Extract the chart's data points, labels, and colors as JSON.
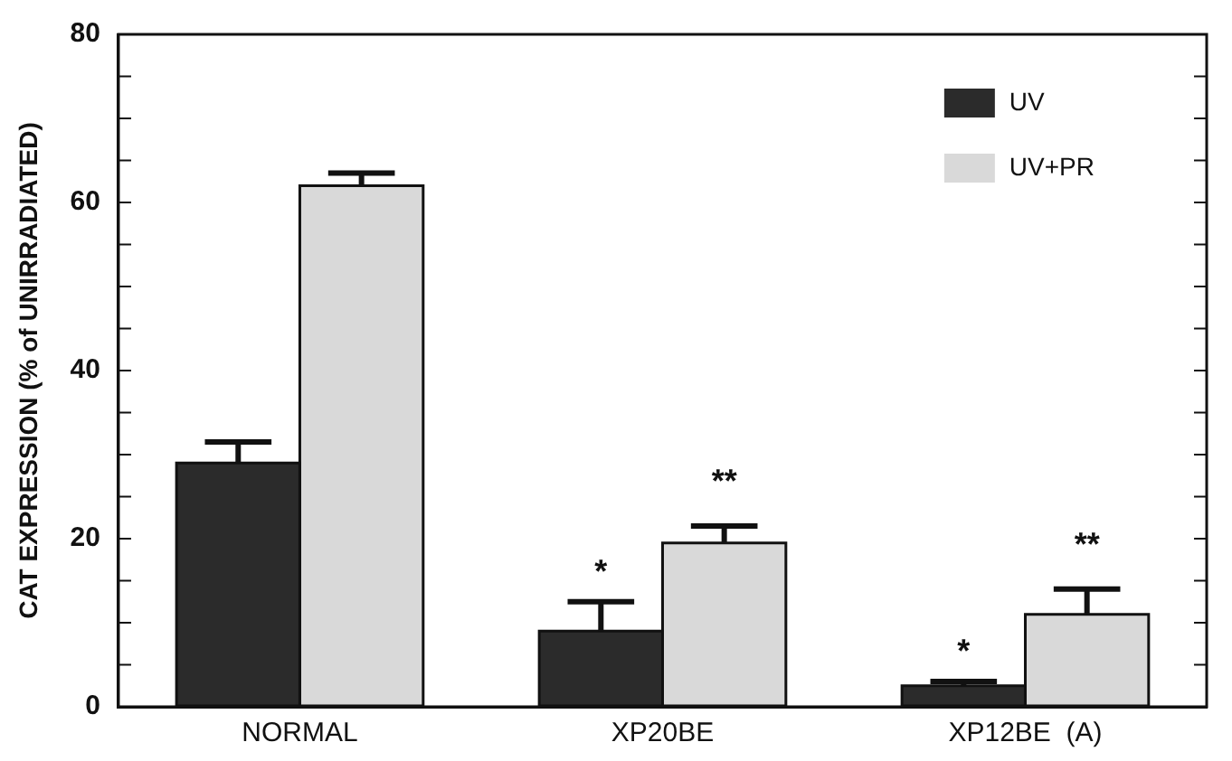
{
  "chart_data": {
    "type": "bar",
    "ylabel": "CAT EXPRESSION (% of UNIRRADIATED)",
    "categories": [
      "NORMAL",
      "XP20BE",
      "XP12BE  (A)"
    ],
    "series": [
      {
        "name": "UV",
        "color": "#2b2b2b",
        "values": [
          29,
          9,
          2.5
        ],
        "errors": [
          [
            29,
            31.5
          ],
          [
            9,
            12.5
          ],
          [
            2.5,
            3
          ]
        ]
      },
      {
        "name": "UV+PR",
        "color": "#d9d9d9",
        "values": [
          62,
          19.5,
          11
        ],
        "errors": [
          [
            62,
            63.5
          ],
          [
            19.5,
            21.5
          ],
          [
            11,
            14
          ]
        ]
      }
    ],
    "ylim": [
      0,
      80
    ],
    "yticks": [
      0,
      {
        "value": 5,
        "label": null
      },
      {
        "value": 10,
        "label": null
      },
      {
        "value": 15,
        "label": null
      },
      20,
      {
        "value": 25,
        "label": null
      },
      {
        "value": 30,
        "label": null
      },
      {
        "value": 35,
        "label": null
      },
      40,
      {
        "value": 45,
        "label": null
      },
      {
        "value": 50,
        "label": null
      },
      {
        "value": 55,
        "label": null
      },
      60,
      {
        "value": 65,
        "label": null
      },
      {
        "value": 70,
        "label": null
      },
      {
        "value": 75,
        "label": null
      },
      80
    ],
    "annotations": [
      {
        "text": "*",
        "x": "XP20BE",
        "y": 12.5
      },
      "**",
      {
        "text": "*",
        "x": "XP12BE  (A)",
        "y": 3
      },
      "**"
    ],
    "legend": "top right",
    "grid": false
  }
}
